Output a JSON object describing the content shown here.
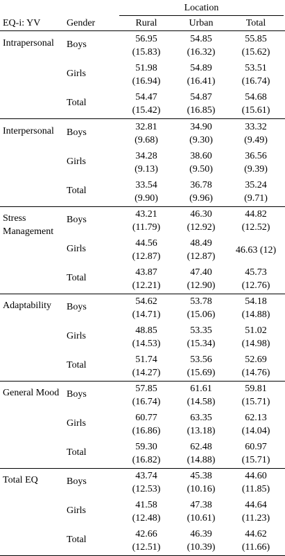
{
  "header": {
    "domain_col": "EQ-i: YV",
    "gender_col": "Gender",
    "location_group": "Location",
    "columns": [
      "Rural",
      "Urban",
      "Total"
    ]
  },
  "sections": [
    {
      "domain": "Intrapersonal",
      "rows": [
        {
          "gender": "Boys",
          "cells": [
            {
              "mean": "56.95",
              "sd": "(15.83)"
            },
            {
              "mean": "54.85",
              "sd": "(16.32)"
            },
            {
              "mean": "55.85",
              "sd": "(15.62)"
            }
          ]
        },
        {
          "gender": "Girls",
          "cells": [
            {
              "mean": "51.98",
              "sd": "(16.94)"
            },
            {
              "mean": "54.89",
              "sd": "(16.41)"
            },
            {
              "mean": "53.51",
              "sd": "(16.74)"
            }
          ]
        },
        {
          "gender": "Total",
          "cells": [
            {
              "mean": "54.47",
              "sd": "(15.42)"
            },
            {
              "mean": "54.87",
              "sd": "(16.85)"
            },
            {
              "mean": "54.68",
              "sd": "(15.61)"
            }
          ]
        }
      ]
    },
    {
      "domain": "Interpersonal",
      "rows": [
        {
          "gender": "Boys",
          "cells": [
            {
              "mean": "32.81",
              "sd": "(9.68)"
            },
            {
              "mean": "34.90",
              "sd": "(9.30)"
            },
            {
              "mean": "33.32",
              "sd": "(9.49)"
            }
          ]
        },
        {
          "gender": "Girls",
          "cells": [
            {
              "mean": "34.28",
              "sd": "(9.13)"
            },
            {
              "mean": "38.60",
              "sd": "(9.50)"
            },
            {
              "mean": "36.56",
              "sd": "(9.39)"
            }
          ]
        },
        {
          "gender": "Total",
          "cells": [
            {
              "mean": "33.54",
              "sd": "(9.90)"
            },
            {
              "mean": "36.78",
              "sd": "(9.96)"
            },
            {
              "mean": "35.24",
              "sd": "(9.71)"
            }
          ]
        }
      ]
    },
    {
      "domain": "Stress Management",
      "rows": [
        {
          "gender": "Boys",
          "cells": [
            {
              "mean": "43.21",
              "sd": "(11.79)"
            },
            {
              "mean": "46.30",
              "sd": "(12.92)"
            },
            {
              "mean": "44.82",
              "sd": "(12.52)"
            }
          ]
        },
        {
          "gender": "Girls",
          "cells": [
            {
              "mean": "44.56",
              "sd": "(12.87)"
            },
            {
              "mean": "48.49",
              "sd": "(12.87)"
            },
            {
              "mean": "46.63 (12)",
              "sd": ""
            }
          ]
        },
        {
          "gender": "Total",
          "cells": [
            {
              "mean": "43.87",
              "sd": "(12.21)"
            },
            {
              "mean": "47.40",
              "sd": "(12.90)"
            },
            {
              "mean": "45.73",
              "sd": "(12.76)"
            }
          ]
        }
      ]
    },
    {
      "domain": "Adaptability",
      "rows": [
        {
          "gender": "Boys",
          "cells": [
            {
              "mean": "54.62",
              "sd": "(14.71)"
            },
            {
              "mean": "53.78",
              "sd": "(15.06)"
            },
            {
              "mean": "54.18",
              "sd": "(14.88)"
            }
          ]
        },
        {
          "gender": "Girls",
          "cells": [
            {
              "mean": "48.85",
              "sd": "(14.53)"
            },
            {
              "mean": "53.35",
              "sd": "(15.34)"
            },
            {
              "mean": "51.02",
              "sd": "(14.98)"
            }
          ]
        },
        {
          "gender": "Total",
          "cells": [
            {
              "mean": "51.74",
              "sd": "(14.27)"
            },
            {
              "mean": "53.56",
              "sd": "(15.69)"
            },
            {
              "mean": "52.69",
              "sd": "(14.76)"
            }
          ]
        }
      ]
    },
    {
      "domain": "General Mood",
      "rows": [
        {
          "gender": "Boys",
          "cells": [
            {
              "mean": "57.85",
              "sd": "(16.74)"
            },
            {
              "mean": "61.61",
              "sd": "(14.58)"
            },
            {
              "mean": "59.81",
              "sd": "(15.71)"
            }
          ]
        },
        {
          "gender": "Girls",
          "cells": [
            {
              "mean": "60.77",
              "sd": "(16.86)"
            },
            {
              "mean": "63.35",
              "sd": "(13.18)"
            },
            {
              "mean": "62.13",
              "sd": "(14.04)"
            }
          ]
        },
        {
          "gender": "Total",
          "cells": [
            {
              "mean": "59.30",
              "sd": "(16.82)"
            },
            {
              "mean": "62.48",
              "sd": "(14.88)"
            },
            {
              "mean": "60.97",
              "sd": "(15.71)"
            }
          ]
        }
      ]
    },
    {
      "domain": "Total EQ",
      "rows": [
        {
          "gender": "Boys",
          "cells": [
            {
              "mean": "43.74",
              "sd": "(12.53)"
            },
            {
              "mean": "45.38",
              "sd": "(10.16)"
            },
            {
              "mean": "44.60",
              "sd": "(11.85)"
            }
          ]
        },
        {
          "gender": "Girls",
          "cells": [
            {
              "mean": "41.58",
              "sd": "(12.48)"
            },
            {
              "mean": "47.38",
              "sd": "(10.61)"
            },
            {
              "mean": "44.64",
              "sd": "(11.23)"
            }
          ]
        },
        {
          "gender": "Total",
          "cells": [
            {
              "mean": "42.66",
              "sd": "(12.51)"
            },
            {
              "mean": "46.39",
              "sd": "(10.39)"
            },
            {
              "mean": "44.62",
              "sd": "(11.66)"
            }
          ]
        }
      ]
    }
  ]
}
